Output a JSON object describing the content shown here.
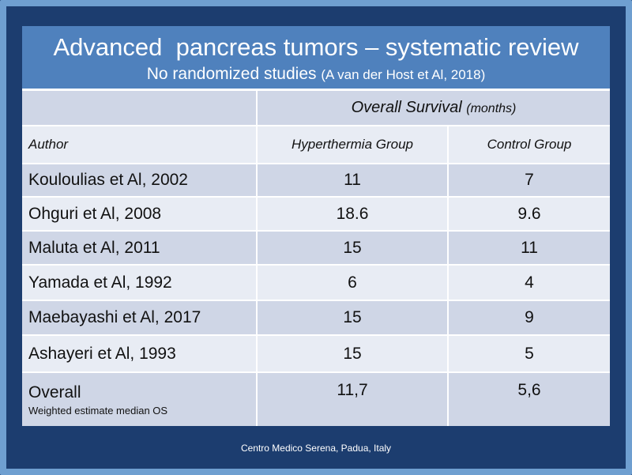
{
  "slide": {
    "title": "Advanced  pancreas tumors – systematic review",
    "subtitle": "No randomized studies",
    "citation": "(A van der Host et Al, 2018)"
  },
  "table": {
    "group_header": "Overall Survival",
    "group_header_unit": "(months)",
    "columns": [
      "Author",
      "Hyperthermia Group",
      "Control Group"
    ],
    "rows": [
      {
        "author": "Kouloulias et Al, 2002",
        "hyperthermia": "11",
        "control": "7"
      },
      {
        "author": "Ohguri et Al, 2008",
        "hyperthermia": "18.6",
        "control": "9.6"
      },
      {
        "author": "Maluta et Al, 2011",
        "hyperthermia": "15",
        "control": "11"
      },
      {
        "author": "Yamada et Al, 1992",
        "hyperthermia": "6",
        "control": "4"
      },
      {
        "author": "Maebayashi et Al, 2017",
        "hyperthermia": "15",
        "control": "9"
      },
      {
        "author": "Ashayeri et Al, 1993",
        "hyperthermia": "15",
        "control": "5"
      }
    ],
    "overall": {
      "label": "Overall",
      "note": "Weighted estimate median OS",
      "hyperthermia": "11,7",
      "control": "5,6"
    }
  },
  "footer": "Centro Medico Serena, Padua, Italy",
  "colors": {
    "background": "#1c3d6f",
    "title_band": "#4f81bd",
    "row_dark": "#cfd6e6",
    "row_light": "#e8ecf4"
  }
}
